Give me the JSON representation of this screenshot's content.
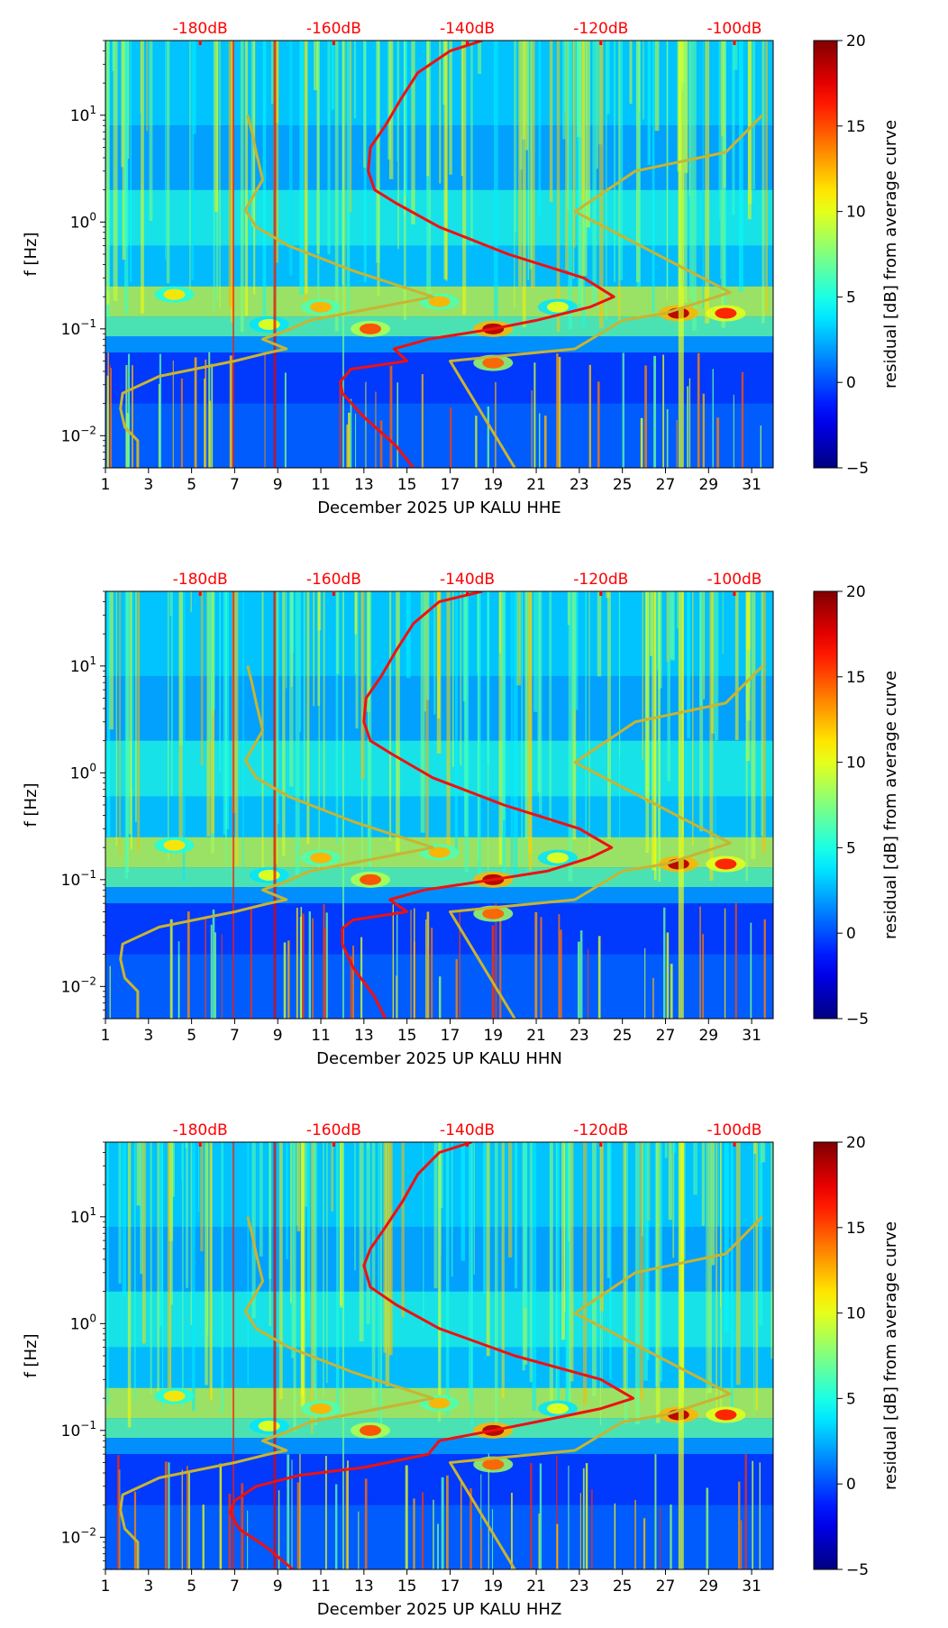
{
  "chart_data": [
    {
      "type": "heatmap",
      "title": "",
      "xlabel": "December 2025 UP KALU  HHE",
      "ylabel": "f [Hz]",
      "x_ticks": [
        1,
        3,
        5,
        7,
        9,
        11,
        13,
        15,
        17,
        19,
        21,
        23,
        25,
        27,
        29,
        31
      ],
      "xlim": [
        1,
        32
      ],
      "ylim_hz": [
        0.005,
        50
      ],
      "y_tick_values": [
        0.01,
        0.1,
        1,
        10
      ],
      "y_tick_labels": [
        [
          "10",
          "−2"
        ],
        [
          "10",
          "−1"
        ],
        [
          "10",
          "0"
        ],
        [
          "10",
          "1"
        ]
      ],
      "top_axis_labels": [
        "-180dB",
        "-160dB",
        "-140dB",
        "-120dB",
        "-100dB"
      ],
      "top_axis_color": "#ff0000",
      "colorbar": {
        "label": "residual [dB] from average curve",
        "range": [
          -5,
          20
        ],
        "ticks": [
          -5,
          0,
          5,
          10,
          15,
          20
        ],
        "colormap": "jet"
      },
      "series": [
        {
          "name": "noise-model-low",
          "color": "#c8b432",
          "points": [
            [
              2.5,
              0.005
            ],
            [
              2.5,
              0.009
            ],
            [
              1.9,
              0.012
            ],
            [
              1.7,
              0.018
            ],
            [
              1.8,
              0.025
            ],
            [
              3.5,
              0.036
            ],
            [
              7,
              0.05
            ],
            [
              8.6,
              0.06
            ],
            [
              9.4,
              0.065
            ],
            [
              8.3,
              0.08
            ],
            [
              9.6,
              0.1
            ],
            [
              10.5,
              0.12
            ],
            [
              16.2,
              0.2
            ],
            [
              12.5,
              0.35
            ],
            [
              9.5,
              0.6
            ],
            [
              8,
              0.9
            ],
            [
              7.5,
              1.3
            ],
            [
              8.3,
              2.5
            ],
            [
              8,
              4.5
            ],
            [
              7.8,
              7
            ],
            [
              7.6,
              10
            ]
          ]
        },
        {
          "name": "noise-model-high",
          "color": "#c8b432",
          "points": [
            [
              20,
              0.005
            ],
            [
              17,
              0.05
            ],
            [
              22.8,
              0.065
            ],
            [
              25,
              0.12
            ],
            [
              27,
              0.14
            ],
            [
              30,
              0.22
            ],
            [
              22.8,
              1.25
            ],
            [
              25.6,
              3
            ],
            [
              29.8,
              4.5
            ],
            [
              31.5,
              10
            ]
          ]
        },
        {
          "name": "median-psd",
          "color": "#ee1111",
          "points": [
            [
              15.3,
              0.005
            ],
            [
              14.5,
              0.008
            ],
            [
              13,
              0.015
            ],
            [
              12,
              0.025
            ],
            [
              11.9,
              0.032
            ],
            [
              12.4,
              0.042
            ],
            [
              15,
              0.05
            ],
            [
              14.4,
              0.065
            ],
            [
              16,
              0.08
            ],
            [
              19,
              0.1
            ],
            [
              21,
              0.12
            ],
            [
              23.5,
              0.16
            ],
            [
              24.6,
              0.2
            ],
            [
              23.2,
              0.3
            ],
            [
              19.7,
              0.5
            ],
            [
              16.5,
              0.9
            ],
            [
              14.5,
              1.5
            ],
            [
              13.5,
              2
            ],
            [
              13.2,
              3
            ],
            [
              13.3,
              5
            ],
            [
              14,
              8
            ],
            [
              14.7,
              14
            ],
            [
              15.5,
              25
            ],
            [
              17,
              40
            ],
            [
              18.5,
              50
            ]
          ]
        }
      ]
    },
    {
      "type": "heatmap",
      "title": "",
      "xlabel": "December 2025 UP KALU  HHN",
      "ylabel": "f [Hz]",
      "x_ticks": [
        1,
        3,
        5,
        7,
        9,
        11,
        13,
        15,
        17,
        19,
        21,
        23,
        25,
        27,
        29,
        31
      ],
      "xlim": [
        1,
        32
      ],
      "ylim_hz": [
        0.005,
        50
      ],
      "y_tick_values": [
        0.01,
        0.1,
        1,
        10
      ],
      "y_tick_labels": [
        [
          "10",
          "−2"
        ],
        [
          "10",
          "−1"
        ],
        [
          "10",
          "0"
        ],
        [
          "10",
          "1"
        ]
      ],
      "top_axis_labels": [
        "-180dB",
        "-160dB",
        "-140dB",
        "-120dB",
        "-100dB"
      ],
      "top_axis_color": "#ff0000",
      "colorbar": {
        "label": "residual [dB] from average curve",
        "range": [
          -5,
          20
        ],
        "ticks": [
          -5,
          0,
          5,
          10,
          15,
          20
        ],
        "colormap": "jet"
      },
      "series": [
        {
          "name": "noise-model-low",
          "color": "#c8b432",
          "points": [
            [
              2.5,
              0.005
            ],
            [
              2.5,
              0.009
            ],
            [
              1.9,
              0.012
            ],
            [
              1.7,
              0.018
            ],
            [
              1.8,
              0.025
            ],
            [
              3.5,
              0.036
            ],
            [
              7,
              0.05
            ],
            [
              8.6,
              0.06
            ],
            [
              9.4,
              0.065
            ],
            [
              8.3,
              0.08
            ],
            [
              9.6,
              0.1
            ],
            [
              10.5,
              0.12
            ],
            [
              16.2,
              0.2
            ],
            [
              12.5,
              0.35
            ],
            [
              9.5,
              0.6
            ],
            [
              8,
              0.9
            ],
            [
              7.5,
              1.3
            ],
            [
              8.3,
              2.5
            ],
            [
              8,
              4.5
            ],
            [
              7.8,
              7
            ],
            [
              7.6,
              10
            ]
          ]
        },
        {
          "name": "noise-model-high",
          "color": "#c8b432",
          "points": [
            [
              20,
              0.005
            ],
            [
              17,
              0.05
            ],
            [
              22.8,
              0.065
            ],
            [
              25,
              0.12
            ],
            [
              27,
              0.14
            ],
            [
              30,
              0.22
            ],
            [
              22.8,
              1.25
            ],
            [
              25.6,
              3
            ],
            [
              29.8,
              4.5
            ],
            [
              31.5,
              10
            ]
          ]
        },
        {
          "name": "median-psd",
          "color": "#ee1111",
          "points": [
            [
              14,
              0.005
            ],
            [
              13.5,
              0.008
            ],
            [
              12.5,
              0.015
            ],
            [
              12,
              0.025
            ],
            [
              12,
              0.035
            ],
            [
              12.5,
              0.042
            ],
            [
              15,
              0.05
            ],
            [
              14.2,
              0.065
            ],
            [
              15.8,
              0.08
            ],
            [
              19,
              0.1
            ],
            [
              21.5,
              0.12
            ],
            [
              23.5,
              0.16
            ],
            [
              24.5,
              0.2
            ],
            [
              23,
              0.3
            ],
            [
              19.5,
              0.5
            ],
            [
              16.2,
              0.9
            ],
            [
              14.3,
              1.5
            ],
            [
              13.3,
              2
            ],
            [
              13,
              3
            ],
            [
              13.1,
              5
            ],
            [
              13.8,
              8
            ],
            [
              14.5,
              14
            ],
            [
              15.3,
              25
            ],
            [
              16.5,
              40
            ],
            [
              18.5,
              50
            ]
          ]
        }
      ]
    },
    {
      "type": "heatmap",
      "title": "",
      "xlabel": "December 2025 UP KALU  HHZ",
      "ylabel": "f [Hz]",
      "x_ticks": [
        1,
        3,
        5,
        7,
        9,
        11,
        13,
        15,
        17,
        19,
        21,
        23,
        25,
        27,
        29,
        31
      ],
      "xlim": [
        1,
        32
      ],
      "ylim_hz": [
        0.005,
        50
      ],
      "y_tick_values": [
        0.01,
        0.1,
        1,
        10
      ],
      "y_tick_labels": [
        [
          "10",
          "−2"
        ],
        [
          "10",
          "−1"
        ],
        [
          "10",
          "0"
        ],
        [
          "10",
          "1"
        ]
      ],
      "top_axis_labels": [
        "-180dB",
        "-160dB",
        "-140dB",
        "-120dB",
        "-100dB"
      ],
      "top_axis_color": "#ff0000",
      "colorbar": {
        "label": "residual [dB] from average curve",
        "range": [
          -5,
          20
        ],
        "ticks": [
          -5,
          0,
          5,
          10,
          15,
          20
        ],
        "colormap": "jet"
      },
      "series": [
        {
          "name": "noise-model-low",
          "color": "#c8b432",
          "points": [
            [
              2.5,
              0.005
            ],
            [
              2.5,
              0.009
            ],
            [
              1.9,
              0.012
            ],
            [
              1.7,
              0.018
            ],
            [
              1.8,
              0.025
            ],
            [
              3.5,
              0.036
            ],
            [
              7,
              0.05
            ],
            [
              8.6,
              0.06
            ],
            [
              9.4,
              0.065
            ],
            [
              8.3,
              0.08
            ],
            [
              9.6,
              0.1
            ],
            [
              10.5,
              0.12
            ],
            [
              16.2,
              0.2
            ],
            [
              12.5,
              0.35
            ],
            [
              9.5,
              0.6
            ],
            [
              8,
              0.9
            ],
            [
              7.5,
              1.3
            ],
            [
              8.3,
              2.5
            ],
            [
              8,
              4.5
            ],
            [
              7.8,
              7
            ],
            [
              7.6,
              10
            ]
          ]
        },
        {
          "name": "noise-model-high",
          "color": "#c8b432",
          "points": [
            [
              20,
              0.005
            ],
            [
              17,
              0.05
            ],
            [
              22.8,
              0.065
            ],
            [
              25,
              0.12
            ],
            [
              27,
              0.14
            ],
            [
              30,
              0.22
            ],
            [
              22.8,
              1.25
            ],
            [
              25.6,
              3
            ],
            [
              29.8,
              4.5
            ],
            [
              31.5,
              10
            ]
          ]
        },
        {
          "name": "median-psd",
          "color": "#ee1111",
          "points": [
            [
              9.7,
              0.005
            ],
            [
              8.5,
              0.008
            ],
            [
              7.2,
              0.012
            ],
            [
              6.8,
              0.017
            ],
            [
              7,
              0.022
            ],
            [
              8,
              0.03
            ],
            [
              10,
              0.038
            ],
            [
              13,
              0.045
            ],
            [
              16,
              0.06
            ],
            [
              16.5,
              0.08
            ],
            [
              19,
              0.1
            ],
            [
              21,
              0.12
            ],
            [
              24,
              0.16
            ],
            [
              25.5,
              0.2
            ],
            [
              24,
              0.3
            ],
            [
              20,
              0.5
            ],
            [
              16.5,
              0.9
            ],
            [
              14.5,
              1.5
            ],
            [
              13.3,
              2.2
            ],
            [
              13,
              3.5
            ],
            [
              13.3,
              5
            ],
            [
              14,
              8
            ],
            [
              14.8,
              14
            ],
            [
              15.5,
              25
            ],
            [
              16.5,
              40
            ],
            [
              18,
              50
            ]
          ]
        }
      ]
    }
  ]
}
